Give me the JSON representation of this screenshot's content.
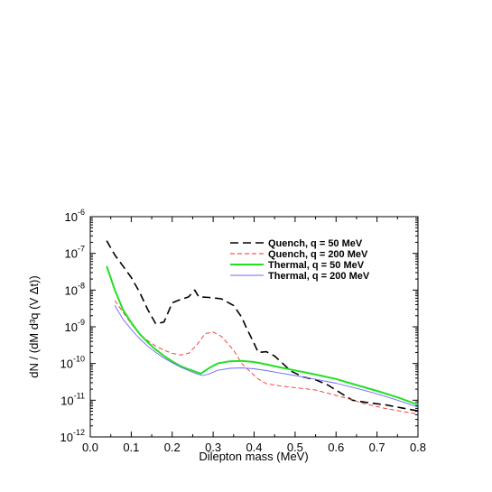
{
  "chart_data": {
    "type": "line",
    "xlabel": "Dilepton mass (MeV)",
    "ylabel": "dN / (dM d³q (V Δt))",
    "xlim": [
      0.0,
      0.8
    ],
    "ylim": [
      1e-12,
      1e-06
    ],
    "yscale": "log",
    "x_ticks": [
      "0.0",
      "0.1",
      "0.2",
      "0.3",
      "0.4",
      "0.5",
      "0.6",
      "0.7",
      "0.8"
    ],
    "y_ticks": [
      {
        "base": "10",
        "exp": "-12",
        "value": 1e-12
      },
      {
        "base": "10",
        "exp": "-11",
        "value": 1e-11
      },
      {
        "base": "10",
        "exp": "-10",
        "value": 1e-10
      },
      {
        "base": "10",
        "exp": "-9",
        "value": 1e-09
      },
      {
        "base": "10",
        "exp": "-8",
        "value": 1e-08
      },
      {
        "base": "10",
        "exp": "-7",
        "value": 1e-07
      },
      {
        "base": "10",
        "exp": "-6",
        "value": 1e-06
      }
    ],
    "legend_position": "top-right",
    "series": [
      {
        "name": "Quench,  q =  50 MeV",
        "color": "#000000",
        "style": "dashed-long",
        "width": 1.6,
        "points": [
          [
            0.04,
            2.2e-07
          ],
          [
            0.06,
            9e-08
          ],
          [
            0.08,
            4.5e-08
          ],
          [
            0.1,
            2.2e-08
          ],
          [
            0.12,
            9e-09
          ],
          [
            0.14,
            3e-09
          ],
          [
            0.16,
            1.2e-09
          ],
          [
            0.18,
            1.35e-09
          ],
          [
            0.2,
            4.5e-09
          ],
          [
            0.22,
            5.5e-09
          ],
          [
            0.24,
            6.5e-09
          ],
          [
            0.255,
            1e-08
          ],
          [
            0.265,
            6.5e-09
          ],
          [
            0.29,
            6.3e-09
          ],
          [
            0.32,
            5.8e-09
          ],
          [
            0.35,
            3.8e-09
          ],
          [
            0.37,
            1.8e-09
          ],
          [
            0.38,
            1e-09
          ],
          [
            0.4,
            3.5e-10
          ],
          [
            0.41,
            2e-10
          ],
          [
            0.43,
            2.1e-10
          ],
          [
            0.45,
            1.6e-10
          ],
          [
            0.47,
            1e-10
          ],
          [
            0.49,
            6.2e-11
          ],
          [
            0.52,
            4.3e-11
          ],
          [
            0.55,
            3.6e-11
          ],
          [
            0.58,
            2.6e-11
          ],
          [
            0.61,
            1.6e-11
          ],
          [
            0.64,
            1e-11
          ],
          [
            0.68,
            8.5e-12
          ],
          [
            0.72,
            7.5e-12
          ],
          [
            0.76,
            6.2e-12
          ],
          [
            0.8,
            5.1e-12
          ]
        ]
      },
      {
        "name": "Quench,  q = 200 MeV",
        "color": "#ff2a2a",
        "style": "dashed-short",
        "width": 0.9,
        "points": [
          [
            0.06,
            5.2e-09
          ],
          [
            0.08,
            2.5e-09
          ],
          [
            0.1,
            1.2e-09
          ],
          [
            0.12,
            6.5e-10
          ],
          [
            0.14,
            4.2e-10
          ],
          [
            0.16,
            3e-10
          ],
          [
            0.18,
            2.3e-10
          ],
          [
            0.2,
            1.9e-10
          ],
          [
            0.22,
            1.7e-10
          ],
          [
            0.24,
            1.9e-10
          ],
          [
            0.26,
            3.2e-10
          ],
          [
            0.28,
            6.5e-10
          ],
          [
            0.3,
            7.2e-10
          ],
          [
            0.32,
            5.5e-10
          ],
          [
            0.35,
            2.3e-10
          ],
          [
            0.37,
            1e-10
          ],
          [
            0.39,
            6e-11
          ],
          [
            0.41,
            3.8e-11
          ],
          [
            0.43,
            2.8e-11
          ],
          [
            0.46,
            2.5e-11
          ],
          [
            0.5,
            2.2e-11
          ],
          [
            0.55,
            1.9e-11
          ],
          [
            0.59,
            1.45e-11
          ],
          [
            0.63,
            1.1e-11
          ],
          [
            0.67,
            8e-12
          ],
          [
            0.72,
            6e-12
          ],
          [
            0.76,
            5e-12
          ],
          [
            0.8,
            4.2e-12
          ]
        ]
      },
      {
        "name": "Thermal,  q =  50 MeV",
        "color": "#22e022",
        "style": "solid",
        "width": 2.0,
        "points": [
          [
            0.04,
            4.5e-08
          ],
          [
            0.06,
            1e-08
          ],
          [
            0.08,
            2.9e-09
          ],
          [
            0.1,
            1.3e-09
          ],
          [
            0.12,
            6.5e-10
          ],
          [
            0.14,
            3.8e-10
          ],
          [
            0.16,
            2.4e-10
          ],
          [
            0.18,
            1.6e-10
          ],
          [
            0.2,
            1.15e-10
          ],
          [
            0.22,
            8.5e-11
          ],
          [
            0.24,
            7e-11
          ],
          [
            0.26,
            5.8e-11
          ],
          [
            0.27,
            5.3e-11
          ],
          [
            0.29,
            7.5e-11
          ],
          [
            0.31,
            1e-10
          ],
          [
            0.34,
            1.15e-10
          ],
          [
            0.37,
            1.18e-10
          ],
          [
            0.4,
            1.1e-10
          ],
          [
            0.43,
            9.5e-11
          ],
          [
            0.46,
            8e-11
          ],
          [
            0.5,
            6.5e-11
          ],
          [
            0.55,
            5e-11
          ],
          [
            0.6,
            3.8e-11
          ],
          [
            0.65,
            2.6e-11
          ],
          [
            0.7,
            1.8e-11
          ],
          [
            0.75,
            1.2e-11
          ],
          [
            0.8,
            7.5e-12
          ]
        ]
      },
      {
        "name": "Thermal,  q = 200 MeV",
        "color": "#6a6aff",
        "style": "solid",
        "width": 0.9,
        "points": [
          [
            0.06,
            3.8e-09
          ],
          [
            0.08,
            1.6e-09
          ],
          [
            0.1,
            8.5e-10
          ],
          [
            0.12,
            4.8e-10
          ],
          [
            0.14,
            3e-10
          ],
          [
            0.16,
            2e-10
          ],
          [
            0.18,
            1.4e-10
          ],
          [
            0.2,
            1.05e-10
          ],
          [
            0.22,
            8e-11
          ],
          [
            0.24,
            6.4e-11
          ],
          [
            0.26,
            5.2e-11
          ],
          [
            0.275,
            4.7e-11
          ],
          [
            0.29,
            5.2e-11
          ],
          [
            0.31,
            6.5e-11
          ],
          [
            0.34,
            7.4e-11
          ],
          [
            0.37,
            7.6e-11
          ],
          [
            0.4,
            7.2e-11
          ],
          [
            0.43,
            6.4e-11
          ],
          [
            0.46,
            5.6e-11
          ],
          [
            0.5,
            4.7e-11
          ],
          [
            0.55,
            3.7e-11
          ],
          [
            0.6,
            2.9e-11
          ],
          [
            0.65,
            2.1e-11
          ],
          [
            0.7,
            1.5e-11
          ],
          [
            0.75,
            1e-11
          ],
          [
            0.8,
            6.5e-12
          ]
        ]
      }
    ]
  }
}
